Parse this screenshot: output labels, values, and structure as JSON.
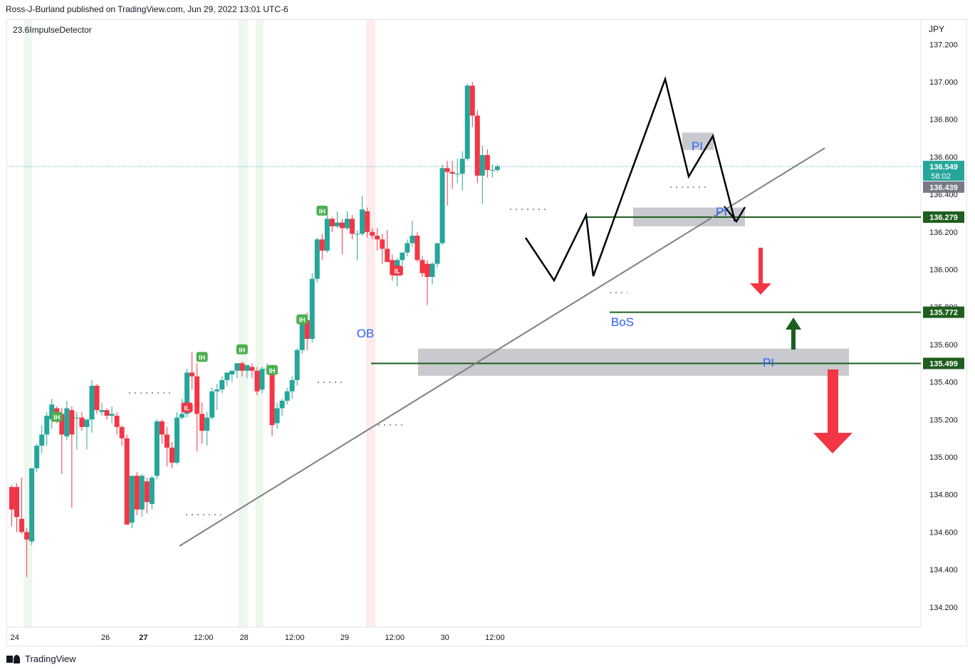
{
  "header": {
    "publisher_line": "Ross-J-Burland published on TradingView.com, Jun 29, 2022 13:01 UTC-6"
  },
  "indicator": {
    "name": "23.6ImpulseDetector"
  },
  "footer": {
    "brand": "TradingView"
  },
  "colors": {
    "up": "#26a69a",
    "down": "#f23645",
    "level_line": "#1e5e1e",
    "trend_line": "#808080",
    "zone": "#9b9fa8",
    "annotation_blue": "#2962ff",
    "green_arrow": "#1b5e20",
    "red_arrow": "#f23645"
  },
  "chart_data": {
    "type": "candlestick",
    "currency": "JPY",
    "ylim": [
      134.08,
      137.3
    ],
    "y_ticks": [
      "137.200",
      "137.000",
      "136.800",
      "136.600",
      "136.400",
      "136.200",
      "136.000",
      "135.800",
      "135.600",
      "135.400",
      "135.200",
      "135.000",
      "134.800",
      "134.600",
      "134.400",
      "134.200"
    ],
    "x_ticks": [
      {
        "label": "24",
        "t": 0.6
      },
      {
        "label": "26",
        "t": 18.7
      },
      {
        "label": "27",
        "t": 26.3
      },
      {
        "label": "12:00",
        "t": 38.3
      },
      {
        "label": "28",
        "t": 46.4
      },
      {
        "label": "12:00",
        "t": 56.5
      },
      {
        "label": "29",
        "t": 66.5
      },
      {
        "label": "12:00",
        "t": 76.5
      },
      {
        "label": "30",
        "t": 86.5
      },
      {
        "label": "12:00",
        "t": 96.5
      }
    ],
    "candles": [
      {
        "o": 134.84,
        "h": 134.85,
        "l": 134.63,
        "c": 134.72
      },
      {
        "o": 134.84,
        "h": 134.86,
        "l": 134.6,
        "c": 134.68
      },
      {
        "o": 134.67,
        "h": 134.89,
        "l": 134.59,
        "c": 134.6
      },
      {
        "o": 134.6,
        "h": 134.62,
        "l": 134.36,
        "c": 134.56
      },
      {
        "o": 134.55,
        "h": 134.93,
        "l": 134.53,
        "c": 134.94
      },
      {
        "o": 134.94,
        "h": 135.07,
        "l": 134.92,
        "c": 135.06
      },
      {
        "o": 135.06,
        "h": 135.17,
        "l": 135.02,
        "c": 135.12
      },
      {
        "o": 135.12,
        "h": 135.24,
        "l": 135.06,
        "c": 135.22
      },
      {
        "o": 135.2,
        "h": 135.31,
        "l": 135.15,
        "c": 135.28
      },
      {
        "o": 135.26,
        "h": 135.27,
        "l": 135.18,
        "c": 135.23
      },
      {
        "o": 135.23,
        "h": 135.26,
        "l": 134.91,
        "c": 135.12
      },
      {
        "o": 135.11,
        "h": 135.3,
        "l": 135.09,
        "c": 135.26
      },
      {
        "o": 135.25,
        "h": 135.27,
        "l": 134.73,
        "c": 135.12
      },
      {
        "o": 135.21,
        "h": 135.24,
        "l": 135.04,
        "c": 135.21
      },
      {
        "o": 135.21,
        "h": 135.24,
        "l": 135.14,
        "c": 135.16
      },
      {
        "o": 135.16,
        "h": 135.2,
        "l": 135.04,
        "c": 135.2
      },
      {
        "o": 135.2,
        "h": 135.41,
        "l": 135.13,
        "c": 135.38
      },
      {
        "o": 135.38,
        "h": 135.39,
        "l": 135.23,
        "c": 135.25
      },
      {
        "o": 135.24,
        "h": 135.29,
        "l": 135.22,
        "c": 135.25
      },
      {
        "o": 135.25,
        "h": 135.26,
        "l": 135.2,
        "c": 135.22
      },
      {
        "o": 135.22,
        "h": 135.27,
        "l": 135.18,
        "c": 135.23
      },
      {
        "o": 135.22,
        "h": 135.24,
        "l": 135.12,
        "c": 135.16
      },
      {
        "o": 135.16,
        "h": 135.17,
        "l": 135.06,
        "c": 135.1
      },
      {
        "o": 135.1,
        "h": 135.12,
        "l": 134.64,
        "c": 134.64
      },
      {
        "o": 134.65,
        "h": 134.9,
        "l": 134.62,
        "c": 134.9
      },
      {
        "o": 134.9,
        "h": 134.92,
        "l": 134.69,
        "c": 134.72
      },
      {
        "o": 134.72,
        "h": 134.91,
        "l": 134.68,
        "c": 134.9
      },
      {
        "o": 134.87,
        "h": 134.89,
        "l": 134.7,
        "c": 134.76
      },
      {
        "o": 134.75,
        "h": 134.9,
        "l": 134.72,
        "c": 134.89
      },
      {
        "o": 134.9,
        "h": 135.2,
        "l": 134.88,
        "c": 135.19
      },
      {
        "o": 135.19,
        "h": 135.2,
        "l": 135.07,
        "c": 135.12
      },
      {
        "o": 135.12,
        "h": 135.16,
        "l": 134.95,
        "c": 135.05
      },
      {
        "o": 135.05,
        "h": 135.08,
        "l": 134.94,
        "c": 134.97
      },
      {
        "o": 134.97,
        "h": 135.24,
        "l": 134.96,
        "c": 135.21
      },
      {
        "o": 135.21,
        "h": 135.31,
        "l": 135.2,
        "c": 135.23
      },
      {
        "o": 135.23,
        "h": 135.47,
        "l": 135.21,
        "c": 135.45
      },
      {
        "o": 135.45,
        "h": 135.56,
        "l": 135.36,
        "c": 135.43
      },
      {
        "o": 135.43,
        "h": 135.5,
        "l": 135.03,
        "c": 135.23
      },
      {
        "o": 135.23,
        "h": 135.29,
        "l": 135.07,
        "c": 135.14
      },
      {
        "o": 135.14,
        "h": 135.24,
        "l": 135.06,
        "c": 135.21
      },
      {
        "o": 135.21,
        "h": 135.37,
        "l": 135.2,
        "c": 135.35
      },
      {
        "o": 135.35,
        "h": 135.39,
        "l": 135.25,
        "c": 135.36
      },
      {
        "o": 135.36,
        "h": 135.43,
        "l": 135.34,
        "c": 135.41
      },
      {
        "o": 135.41,
        "h": 135.45,
        "l": 135.38,
        "c": 135.45
      },
      {
        "o": 135.44,
        "h": 135.46,
        "l": 135.4,
        "c": 135.46
      },
      {
        "o": 135.46,
        "h": 135.5,
        "l": 135.42,
        "c": 135.5
      },
      {
        "o": 135.5,
        "h": 135.51,
        "l": 135.43,
        "c": 135.46
      },
      {
        "o": 135.46,
        "h": 135.49,
        "l": 135.42,
        "c": 135.49
      },
      {
        "o": 135.48,
        "h": 135.5,
        "l": 135.42,
        "c": 135.46
      },
      {
        "o": 135.46,
        "h": 135.48,
        "l": 135.33,
        "c": 135.35
      },
      {
        "o": 135.36,
        "h": 135.48,
        "l": 135.34,
        "c": 135.47
      },
      {
        "o": 135.47,
        "h": 135.5,
        "l": 135.44,
        "c": 135.47
      },
      {
        "o": 135.47,
        "h": 135.49,
        "l": 135.11,
        "c": 135.17
      },
      {
        "o": 135.18,
        "h": 135.29,
        "l": 135.15,
        "c": 135.26
      },
      {
        "o": 135.26,
        "h": 135.31,
        "l": 135.22,
        "c": 135.3
      },
      {
        "o": 135.3,
        "h": 135.37,
        "l": 135.28,
        "c": 135.35
      },
      {
        "o": 135.35,
        "h": 135.43,
        "l": 135.31,
        "c": 135.41
      },
      {
        "o": 135.41,
        "h": 135.58,
        "l": 135.38,
        "c": 135.57
      },
      {
        "o": 135.57,
        "h": 135.75,
        "l": 135.55,
        "c": 135.73
      },
      {
        "o": 135.73,
        "h": 135.77,
        "l": 135.57,
        "c": 135.63
      },
      {
        "o": 135.63,
        "h": 135.98,
        "l": 135.61,
        "c": 135.95
      },
      {
        "o": 135.95,
        "h": 136.17,
        "l": 135.93,
        "c": 136.16
      },
      {
        "o": 136.16,
        "h": 136.19,
        "l": 136.05,
        "c": 136.1
      },
      {
        "o": 136.1,
        "h": 136.3,
        "l": 136.09,
        "c": 136.27
      },
      {
        "o": 136.27,
        "h": 136.28,
        "l": 136.2,
        "c": 136.23
      },
      {
        "o": 136.23,
        "h": 136.31,
        "l": 136.22,
        "c": 136.25
      },
      {
        "o": 136.25,
        "h": 136.27,
        "l": 136.08,
        "c": 136.22
      },
      {
        "o": 136.22,
        "h": 136.31,
        "l": 136.21,
        "c": 136.27
      },
      {
        "o": 136.27,
        "h": 136.29,
        "l": 136.16,
        "c": 136.19
      },
      {
        "o": 136.19,
        "h": 136.21,
        "l": 136.05,
        "c": 136.19
      },
      {
        "o": 136.19,
        "h": 136.39,
        "l": 136.18,
        "c": 136.32
      },
      {
        "o": 136.31,
        "h": 136.33,
        "l": 136.17,
        "c": 136.2
      },
      {
        "o": 136.2,
        "h": 136.22,
        "l": 136.16,
        "c": 136.18
      },
      {
        "o": 136.18,
        "h": 136.22,
        "l": 136.1,
        "c": 136.16
      },
      {
        "o": 136.16,
        "h": 136.19,
        "l": 136.03,
        "c": 136.11
      },
      {
        "o": 136.11,
        "h": 136.21,
        "l": 136.06,
        "c": 136.04
      },
      {
        "o": 136.05,
        "h": 136.08,
        "l": 135.94,
        "c": 135.97
      },
      {
        "o": 135.97,
        "h": 136.06,
        "l": 135.91,
        "c": 136.05
      },
      {
        "o": 136.05,
        "h": 136.09,
        "l": 136.02,
        "c": 136.09
      },
      {
        "o": 136.09,
        "h": 136.16,
        "l": 136.07,
        "c": 136.14
      },
      {
        "o": 136.14,
        "h": 136.26,
        "l": 136.12,
        "c": 136.18
      },
      {
        "o": 136.18,
        "h": 136.2,
        "l": 136.04,
        "c": 136.05
      },
      {
        "o": 136.05,
        "h": 136.07,
        "l": 135.96,
        "c": 135.98
      },
      {
        "o": 136.03,
        "h": 136.05,
        "l": 135.81,
        "c": 135.96
      },
      {
        "o": 135.96,
        "h": 136.04,
        "l": 135.92,
        "c": 136.03
      },
      {
        "o": 136.03,
        "h": 136.14,
        "l": 136.01,
        "c": 136.14
      },
      {
        "o": 136.14,
        "h": 136.56,
        "l": 136.13,
        "c": 136.54
      },
      {
        "o": 136.54,
        "h": 136.58,
        "l": 136.34,
        "c": 136.52
      },
      {
        "o": 136.52,
        "h": 136.58,
        "l": 136.43,
        "c": 136.51
      },
      {
        "o": 136.51,
        "h": 136.59,
        "l": 136.46,
        "c": 136.51
      },
      {
        "o": 136.51,
        "h": 136.63,
        "l": 136.42,
        "c": 136.59
      },
      {
        "o": 136.59,
        "h": 136.99,
        "l": 136.58,
        "c": 136.98
      },
      {
        "o": 136.98,
        "h": 137.0,
        "l": 136.76,
        "c": 136.82
      },
      {
        "o": 136.82,
        "h": 136.85,
        "l": 136.46,
        "c": 136.5
      },
      {
        "o": 136.5,
        "h": 136.66,
        "l": 136.35,
        "c": 136.61
      },
      {
        "o": 136.61,
        "h": 136.64,
        "l": 136.49,
        "c": 136.53
      },
      {
        "o": 136.53,
        "h": 136.56,
        "l": 136.49,
        "c": 136.53
      },
      {
        "o": 136.53,
        "h": 136.56,
        "l": 136.52,
        "c": 136.55
      }
    ],
    "pivot_markers": [
      {
        "i": 9,
        "label": "IH",
        "color": "up",
        "price": 135.21
      },
      {
        "i": 35,
        "label": "IL",
        "color": "down",
        "price": 135.26
      },
      {
        "i": 38,
        "label": "IH",
        "color": "up",
        "price": 135.53
      },
      {
        "i": 46,
        "label": "IH",
        "color": "up",
        "price": 135.57
      },
      {
        "i": 52,
        "label": "IH",
        "color": "up",
        "price": 135.46
      },
      {
        "i": 58,
        "label": "IH",
        "color": "up",
        "price": 135.73
      },
      {
        "i": 62,
        "label": "IH",
        "color": "up",
        "price": 136.31
      },
      {
        "i": 77,
        "label": "IL",
        "color": "down",
        "price": 135.99
      }
    ],
    "price_labels": [
      {
        "value": "136.549",
        "sub": "58:02",
        "price": 136.549,
        "color": "up"
      },
      {
        "value": "136.439",
        "price": 136.439,
        "color": "gray"
      },
      {
        "value": "136.279",
        "price": 136.279,
        "color": "level"
      },
      {
        "value": "135.772",
        "price": 135.772,
        "color": "level"
      },
      {
        "value": "135.499",
        "price": 135.499,
        "color": "level"
      }
    ],
    "annotations": {
      "ob_label": "OB",
      "bos_label": "BoS",
      "pi_labels": [
        "PI",
        "PI",
        "PI"
      ]
    }
  }
}
